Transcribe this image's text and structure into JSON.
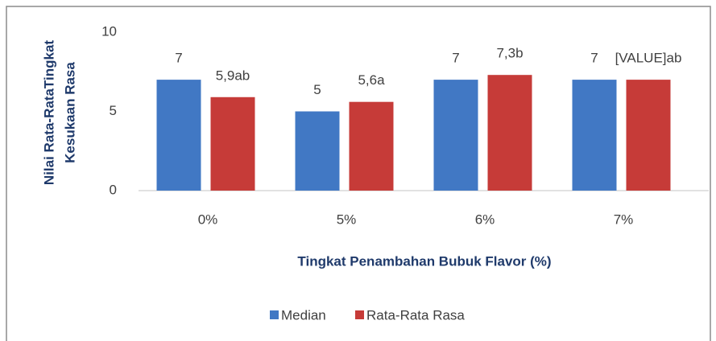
{
  "chart_data": {
    "type": "bar",
    "y_label": [
      "Nilai Rata-RataTingkat",
      "Kesukaan Rasa"
    ],
    "x_label": "Tingkat Penambahan Bubuk Flavor (%)",
    "categories": [
      "0%",
      "5%",
      "6%",
      "7%"
    ],
    "series": [
      {
        "name": "Median",
        "color": "#4178c4",
        "values": [
          7,
          5,
          7,
          7
        ]
      },
      {
        "name": "Rata-Rata Rasa",
        "color": "#c63b38",
        "values": [
          5.9,
          5.6,
          7.3,
          7.0
        ],
        "value_labels": [
          "5,9ab",
          "5,6a",
          "7,3b",
          "[VALUE]ab"
        ]
      }
    ],
    "ylim": [
      0,
      10
    ],
    "yticks": [
      0,
      5,
      10
    ],
    "grid": false,
    "legend": "bottom"
  }
}
